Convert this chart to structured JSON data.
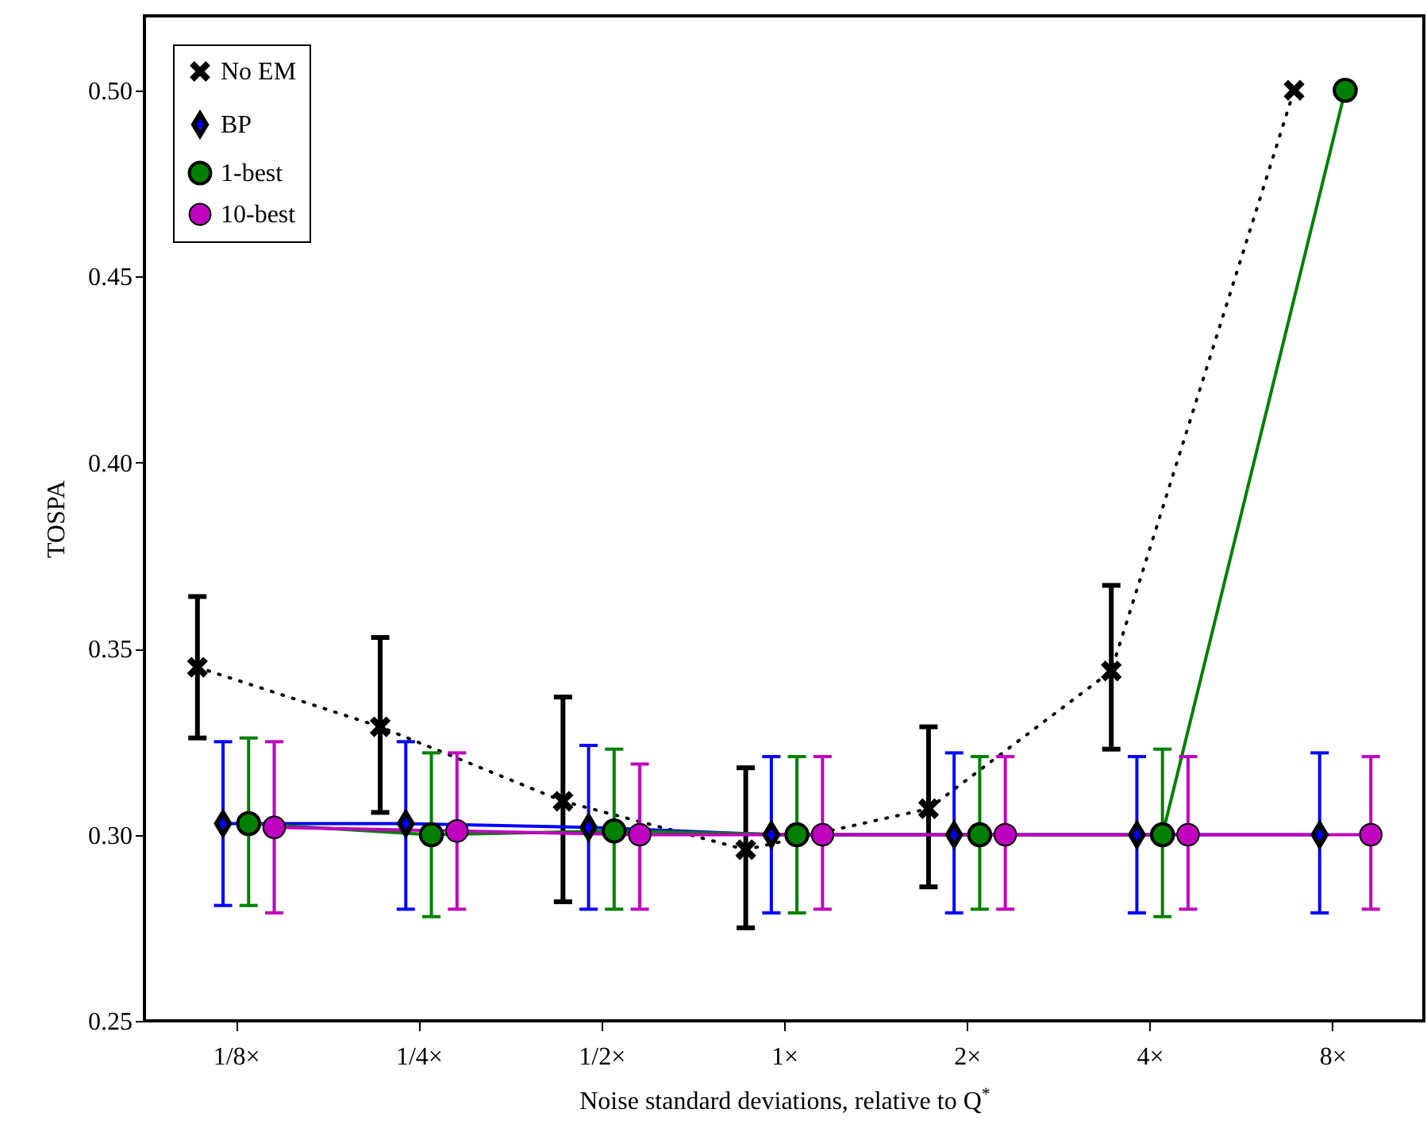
{
  "chart_data": {
    "type": "line",
    "xlabel": "Noise standard deviations, relative to Q$^{*}$",
    "ylabel": "TOSPA",
    "categories": [
      "1/8×",
      "1/4×",
      "1/2×",
      "1×",
      "2×",
      "4×",
      "8×"
    ],
    "ylim": [
      0.25,
      0.52
    ],
    "yticks": [
      0.25,
      {
        "value": 0.3,
        "label": "0.30"
      },
      0.35,
      {
        "value": 0.4,
        "label": "0.40"
      },
      0.45,
      {
        "value": 0.5,
        "label": "0.50"
      }
    ],
    "legend": "top left",
    "grid": false,
    "series": [
      {
        "name": "No EM",
        "color": "#000000",
        "marker": "cross",
        "line_style": "dotted",
        "values": [
          0.345,
          0.329,
          0.309,
          0.296,
          0.307,
          0.344,
          0.5
        ],
        "errors": [
          [
            0.326,
            0.364
          ],
          [
            0.306,
            0.353
          ],
          [
            0.282,
            0.337
          ],
          [
            0.275,
            0.318
          ],
          [
            0.286,
            0.329
          ],
          [
            0.323,
            0.367
          ],
          null
        ]
      },
      {
        "name": "BP",
        "color": "#0000ff",
        "marker": "diamond",
        "line_style": "solid",
        "values": [
          0.303,
          0.303,
          0.302,
          0.3,
          0.3,
          0.3,
          0.3
        ],
        "errors": [
          [
            0.281,
            0.325
          ],
          [
            0.28,
            0.325
          ],
          [
            0.28,
            0.324
          ],
          [
            0.279,
            0.321
          ],
          [
            0.279,
            0.322
          ],
          [
            0.279,
            0.321
          ],
          [
            0.279,
            0.322
          ]
        ]
      },
      {
        "name": "1-best",
        "color": "#008000",
        "marker": "circle",
        "line_style": "solid",
        "values": [
          0.303,
          0.3,
          0.301,
          0.3,
          0.3,
          0.3,
          0.5
        ],
        "errors": [
          [
            0.281,
            0.326
          ],
          [
            0.278,
            0.322
          ],
          [
            0.28,
            0.323
          ],
          [
            0.279,
            0.321
          ],
          [
            0.28,
            0.321
          ],
          [
            0.278,
            0.323
          ],
          null
        ]
      },
      {
        "name": "10-best",
        "color": "#bf00bf",
        "marker": "circle",
        "line_style": "solid",
        "values": [
          0.302,
          0.301,
          0.3,
          0.3,
          0.3,
          0.3,
          0.3
        ],
        "errors": [
          [
            0.279,
            0.325
          ],
          [
            0.28,
            0.322
          ],
          [
            0.28,
            0.319
          ],
          [
            0.28,
            0.321
          ],
          [
            0.28,
            0.321
          ],
          [
            0.28,
            0.321
          ],
          [
            0.28,
            0.321
          ]
        ]
      }
    ]
  }
}
